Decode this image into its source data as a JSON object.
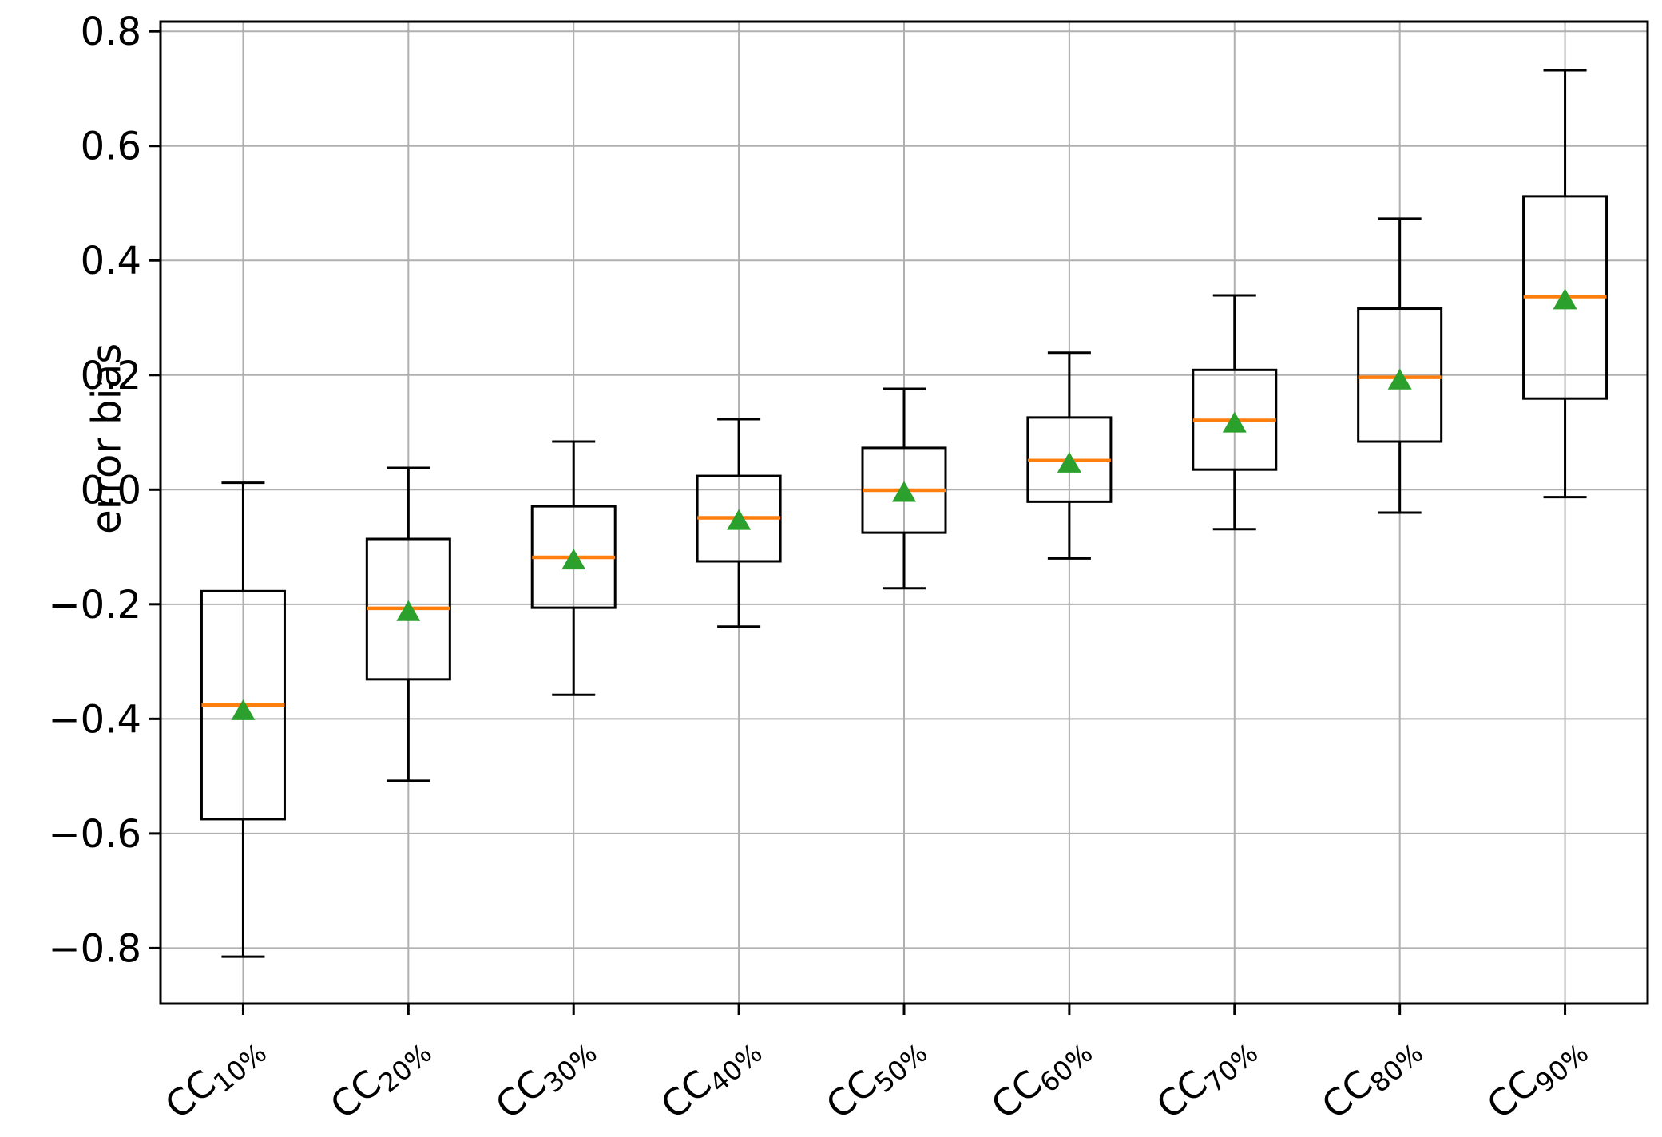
{
  "chart_data": {
    "type": "boxplot",
    "title": "",
    "xlabel": "",
    "ylabel": "error bias",
    "grid": true,
    "legend": null,
    "ylim": [
      -0.897,
      0.817
    ],
    "yticks": [
      {
        "value": 0.8,
        "label": "0.8"
      },
      {
        "value": 0.6,
        "label": "0.6"
      },
      {
        "value": 0.4,
        "label": "0.4"
      },
      {
        "value": 0.2,
        "label": "0.2"
      },
      {
        "value": 0.0,
        "label": "0.0"
      },
      {
        "value": -0.2,
        "label": "−0.2"
      },
      {
        "value": -0.4,
        "label": "−0.4"
      },
      {
        "value": -0.6,
        "label": "−0.6"
      },
      {
        "value": -0.8,
        "label": "−0.8"
      }
    ],
    "categories": [
      {
        "base": "CC",
        "sub": "10%",
        "plain": "CC10%"
      },
      {
        "base": "CC",
        "sub": "20%",
        "plain": "CC20%"
      },
      {
        "base": "CC",
        "sub": "30%",
        "plain": "CC30%"
      },
      {
        "base": "CC",
        "sub": "40%",
        "plain": "CC40%"
      },
      {
        "base": "CC",
        "sub": "50%",
        "plain": "CC50%"
      },
      {
        "base": "CC",
        "sub": "60%",
        "plain": "CC60%"
      },
      {
        "base": "CC",
        "sub": "70%",
        "plain": "CC70%"
      },
      {
        "base": "CC",
        "sub": "80%",
        "plain": "CC80%"
      },
      {
        "base": "CC",
        "sub": "90%",
        "plain": "CC90%"
      }
    ],
    "boxes": [
      {
        "category": "CC10%",
        "whisker_low": -0.815,
        "q1": -0.575,
        "median": -0.376,
        "mean": -0.384,
        "q3": -0.177,
        "whisker_high": 0.012
      },
      {
        "category": "CC20%",
        "whisker_low": -0.508,
        "q1": -0.331,
        "median": -0.207,
        "mean": -0.211,
        "q3": -0.086,
        "whisker_high": 0.038
      },
      {
        "category": "CC30%",
        "whisker_low": -0.358,
        "q1": -0.206,
        "median": -0.118,
        "mean": -0.121,
        "q3": -0.029,
        "whisker_high": 0.084
      },
      {
        "category": "CC40%",
        "whisker_low": -0.239,
        "q1": -0.125,
        "median": -0.049,
        "mean": -0.052,
        "q3": 0.024,
        "whisker_high": 0.123
      },
      {
        "category": "CC50%",
        "whisker_low": -0.172,
        "q1": -0.075,
        "median": -0.001,
        "mean": -0.003,
        "q3": 0.073,
        "whisker_high": 0.176
      },
      {
        "category": "CC60%",
        "whisker_low": -0.12,
        "q1": -0.021,
        "median": 0.051,
        "mean": 0.048,
        "q3": 0.126,
        "whisker_high": 0.239
      },
      {
        "category": "CC70%",
        "whisker_low": -0.069,
        "q1": 0.035,
        "median": 0.121,
        "mean": 0.118,
        "q3": 0.209,
        "whisker_high": 0.339
      },
      {
        "category": "CC80%",
        "whisker_low": -0.04,
        "q1": 0.084,
        "median": 0.196,
        "mean": 0.193,
        "q3": 0.316,
        "whisker_high": 0.473
      },
      {
        "category": "CC90%",
        "whisker_low": -0.013,
        "q1": 0.159,
        "median": 0.337,
        "mean": 0.333,
        "q3": 0.512,
        "whisker_high": 0.732
      }
    ],
    "colors": {
      "box_edge": "#000000",
      "whisker": "#000000",
      "median_line": "#ff7f0e",
      "mean_marker": "#2ca02c",
      "grid_line": "#b0b0b0",
      "spine": "#000000",
      "tick_label": "#000000",
      "background": "#ffffff"
    },
    "markers": {
      "mean": "triangle-up-marker"
    }
  }
}
